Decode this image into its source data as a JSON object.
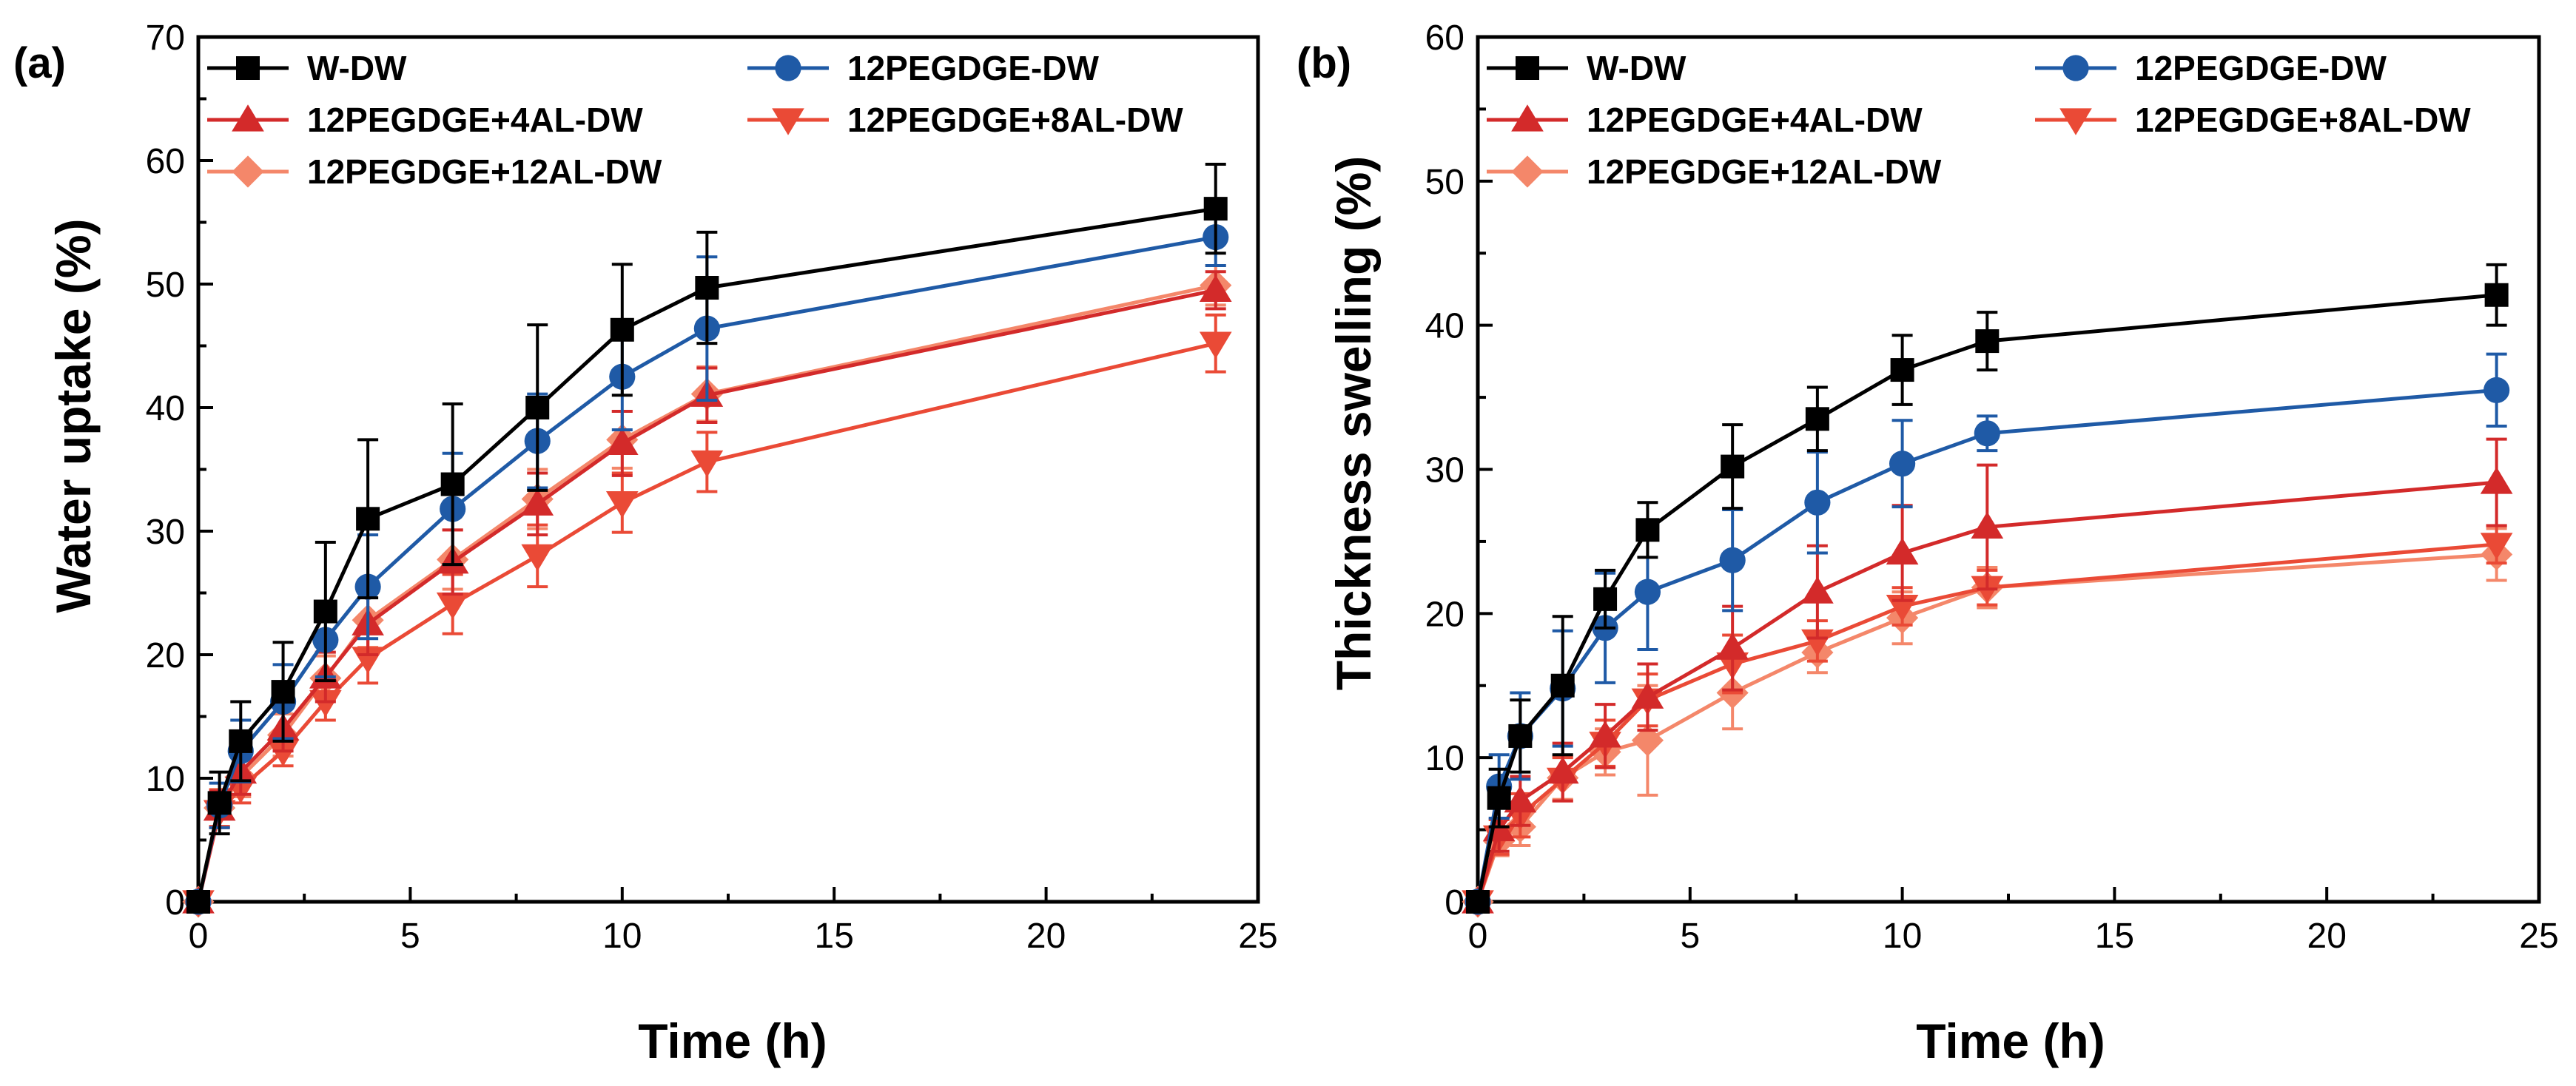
{
  "chart_data": [
    {
      "type": "line",
      "panel": "(a)",
      "xlabel": "Time (h)",
      "ylabel": "Water uptake (%)",
      "xlim": [
        0,
        25
      ],
      "ylim": [
        0,
        70
      ],
      "xticks": [
        0,
        5,
        10,
        15,
        20,
        25
      ],
      "yticks": [
        0,
        10,
        20,
        30,
        40,
        50,
        60,
        70
      ],
      "x": [
        0,
        0.5,
        1,
        2,
        3,
        4,
        6,
        8,
        10,
        12,
        24
      ],
      "series": [
        {
          "name": "W-DW",
          "color": "#000000",
          "marker": "square",
          "values": [
            0,
            8,
            13,
            17,
            23.5,
            31,
            33.8,
            40,
            46.3,
            49.7,
            56.1
          ],
          "errors": [
            0,
            2.5,
            3.2,
            4,
            5.6,
            6.4,
            6.5,
            6.7,
            5.3,
            4.5,
            3.6
          ]
        },
        {
          "name": "12PEGDGE-DW",
          "color": "#1f5aa6",
          "marker": "circle",
          "values": [
            0,
            7.8,
            12.2,
            16.2,
            21.2,
            25.5,
            31.8,
            37.3,
            42.5,
            46.4,
            53.8
          ],
          "errors": [
            0,
            1.8,
            2.5,
            3,
            3,
            4.2,
            4.5,
            3.8,
            4.3,
            5.8,
            2.3
          ]
        },
        {
          "name": "12PEGDGE+4AL-DW",
          "color": "#d32a2a",
          "marker": "triangle-up",
          "values": [
            0,
            7.5,
            10.5,
            14,
            18.2,
            22.5,
            27.5,
            32.2,
            37.1,
            41,
            49.5
          ],
          "errors": [
            0,
            1.5,
            1.8,
            1.8,
            2,
            2.5,
            2.6,
            2.5,
            2.6,
            2.2,
            1.5
          ]
        },
        {
          "name": "12PEGDGE+8AL-DW",
          "color": "#ea4a36",
          "marker": "triangle-down",
          "values": [
            0,
            7.3,
            9.2,
            12.2,
            16.2,
            19.7,
            24.1,
            28,
            32.3,
            35.6,
            45.2
          ],
          "errors": [
            0,
            1.2,
            1.2,
            1.2,
            1.5,
            2,
            2.4,
            2.5,
            2.4,
            2.4,
            2.3
          ]
        },
        {
          "name": "12PEGDGE+12AL-DW",
          "color": "#f4876a",
          "marker": "diamond",
          "values": [
            0,
            7.6,
            10.1,
            13.5,
            18.1,
            22.8,
            27.7,
            32.6,
            37.4,
            41.1,
            49.9
          ],
          "errors": [
            0,
            1.5,
            1.6,
            1.7,
            1.8,
            2.2,
            2.4,
            2.4,
            2.3,
            2.2,
            1.6
          ]
        }
      ]
    },
    {
      "type": "line",
      "panel": "(b)",
      "xlabel": "Time (h)",
      "ylabel": "Thickness swelling (%)",
      "xlim": [
        0,
        25
      ],
      "ylim": [
        0,
        60
      ],
      "xticks": [
        0,
        5,
        10,
        15,
        20,
        25
      ],
      "yticks": [
        0,
        10,
        20,
        30,
        40,
        50,
        60
      ],
      "x": [
        0,
        0.5,
        1,
        2,
        3,
        4,
        6,
        8,
        10,
        12,
        24
      ],
      "series": [
        {
          "name": "W-DW",
          "color": "#000000",
          "marker": "square",
          "values": [
            0,
            7.2,
            11.5,
            15,
            21,
            25.8,
            30.2,
            33.5,
            36.9,
            38.9,
            42.1
          ],
          "errors": [
            0,
            2,
            2.5,
            4.8,
            2,
            1.9,
            2.9,
            2.2,
            2.4,
            2,
            2.1
          ]
        },
        {
          "name": "12PEGDGE-DW",
          "color": "#1f5aa6",
          "marker": "circle",
          "values": [
            0,
            8,
            11.5,
            14.8,
            19,
            21.5,
            23.7,
            27.7,
            30.4,
            32.5,
            35.5
          ],
          "errors": [
            0,
            2.2,
            3,
            4,
            3.8,
            4,
            3.5,
            3.5,
            3,
            1.2,
            2.5
          ]
        },
        {
          "name": "12PEGDGE+4AL-DW",
          "color": "#d32a2a",
          "marker": "triangle-up",
          "values": [
            0,
            5,
            7,
            9,
            11.5,
            14.2,
            17.6,
            21.5,
            24.2,
            26,
            29.1
          ],
          "errors": [
            0,
            1.5,
            1.7,
            2,
            2.2,
            2.3,
            2.9,
            3.2,
            3.3,
            4.3,
            3
          ]
        },
        {
          "name": "12PEGDGE+8AL-DW",
          "color": "#ea4a36",
          "marker": "triangle-down",
          "values": [
            0,
            4.5,
            6,
            8.5,
            11,
            14,
            16.5,
            18.1,
            20.5,
            21.8,
            24.8
          ],
          "errors": [
            0,
            1.2,
            1.5,
            1.5,
            1.6,
            1.8,
            2,
            1.4,
            1.3,
            1.2,
            1.3
          ]
        },
        {
          "name": "12PEGDGE+12AL-DW",
          "color": "#f4876a",
          "marker": "diamond",
          "values": [
            0,
            4.2,
            5.2,
            8.6,
            10.4,
            11.2,
            14.5,
            17.3,
            19.7,
            21.8,
            24.1
          ],
          "errors": [
            0,
            1,
            1.3,
            1.5,
            1.6,
            3.8,
            2.5,
            1.4,
            1.8,
            1.4,
            1.8
          ]
        }
      ]
    }
  ]
}
